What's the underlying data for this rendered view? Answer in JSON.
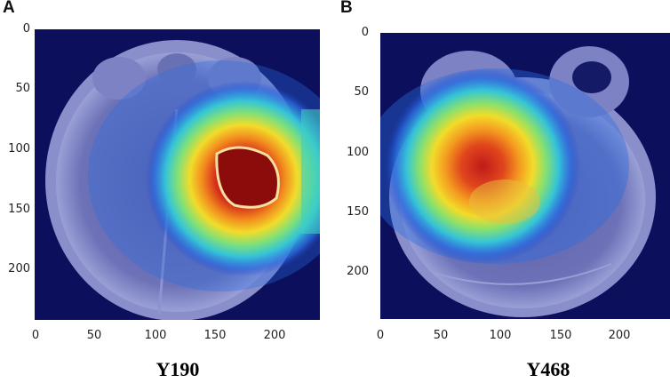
{
  "figure": {
    "panels": [
      {
        "id": "a",
        "letter": "A",
        "caption": "Y190",
        "xticks": [
          "0",
          "50",
          "100",
          "150",
          "200"
        ],
        "yticks": [
          "0",
          "50",
          "100",
          "150",
          "200"
        ],
        "image_description_icon": "mri-heatmap-image"
      },
      {
        "id": "b",
        "letter": "B",
        "caption": "Y468",
        "xticks": [
          "0",
          "50",
          "100",
          "150",
          "200"
        ],
        "yticks": [
          "0",
          "50",
          "100",
          "150",
          "200"
        ],
        "image_description_icon": "mri-heatmap-image"
      }
    ],
    "colors": {
      "background": "#0b0f5c",
      "hot": "#b01818",
      "warm": "#f5d21e",
      "cool": "#30c8d8"
    }
  }
}
